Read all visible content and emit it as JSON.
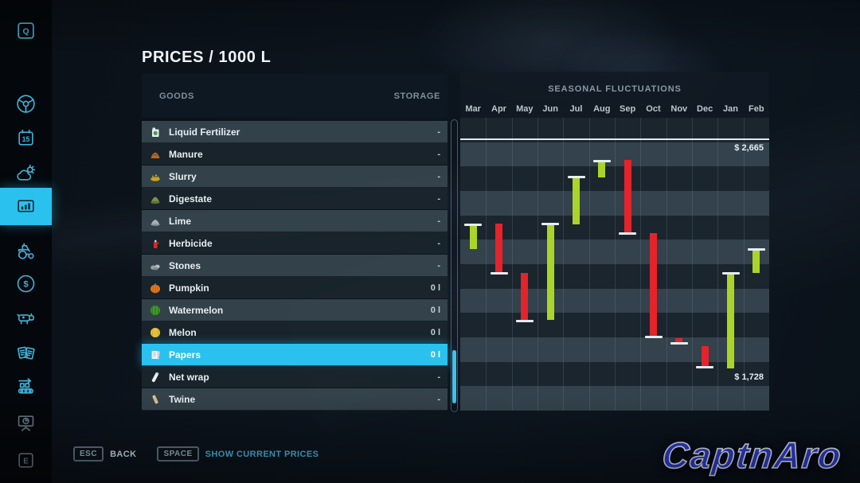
{
  "header": {
    "title": "PRICES / 1000 L"
  },
  "sidebar": {
    "items": [
      {
        "id": "quests",
        "icon": "q-key-icon",
        "label": "Q",
        "selected": false
      },
      {
        "id": "vehicles",
        "icon": "steering-wheel-icon",
        "label": "",
        "selected": false
      },
      {
        "id": "calendar",
        "icon": "calendar-icon",
        "label": "15",
        "selected": false
      },
      {
        "id": "weather",
        "icon": "weather-icon",
        "label": "",
        "selected": false
      },
      {
        "id": "prices",
        "icon": "chart-icon",
        "label": "",
        "selected": true
      },
      {
        "id": "garage",
        "icon": "tractor-icon",
        "label": "",
        "selected": false
      },
      {
        "id": "finances",
        "icon": "dollar-icon",
        "label": "$",
        "selected": false
      },
      {
        "id": "animals",
        "icon": "cow-icon",
        "label": "",
        "selected": false
      },
      {
        "id": "contracts",
        "icon": "contracts-icon",
        "label": "",
        "selected": false
      },
      {
        "id": "production",
        "icon": "production-icon",
        "label": "",
        "selected": false
      },
      {
        "id": "statistics",
        "icon": "screen-icon",
        "label": "",
        "selected": false
      },
      {
        "id": "help",
        "icon": "e-key-icon",
        "label": "E",
        "selected": false
      }
    ]
  },
  "goods_panel": {
    "columns": {
      "goods": "GOODS",
      "storage": "STORAGE"
    },
    "rows": [
      {
        "name": "Liquid Fertilizer",
        "icon": "liquid-fertilizer-icon",
        "storage": "-",
        "selected": false
      },
      {
        "name": "Manure",
        "icon": "manure-icon",
        "storage": "-",
        "selected": false
      },
      {
        "name": "Slurry",
        "icon": "slurry-icon",
        "storage": "-",
        "selected": false
      },
      {
        "name": "Digestate",
        "icon": "digestate-icon",
        "storage": "-",
        "selected": false
      },
      {
        "name": "Lime",
        "icon": "lime-icon",
        "storage": "-",
        "selected": false
      },
      {
        "name": "Herbicide",
        "icon": "herbicide-icon",
        "storage": "-",
        "selected": false
      },
      {
        "name": "Stones",
        "icon": "stones-icon",
        "storage": "-",
        "selected": false
      },
      {
        "name": "Pumpkin",
        "icon": "pumpkin-icon",
        "storage": "0 l",
        "selected": false
      },
      {
        "name": "Watermelon",
        "icon": "watermelon-icon",
        "storage": "0 l",
        "selected": false
      },
      {
        "name": "Melon",
        "icon": "melon-icon",
        "storage": "0 l",
        "selected": false
      },
      {
        "name": "Papers",
        "icon": "papers-icon",
        "storage": "0 l",
        "selected": true
      },
      {
        "name": "Net wrap",
        "icon": "net-wrap-icon",
        "storage": "-",
        "selected": false
      },
      {
        "name": "Twine",
        "icon": "twine-icon",
        "storage": "-",
        "selected": false
      }
    ]
  },
  "chart_data": {
    "type": "candlestick",
    "title": "SEASONAL FLUCTUATIONS",
    "months": [
      "Mar",
      "Apr",
      "May",
      "Jun",
      "Jul",
      "Aug",
      "Sep",
      "Oct",
      "Nov",
      "Dec",
      "Jan",
      "Feb"
    ],
    "axis": {
      "reference_line_price": 2665,
      "min_price": 1728,
      "max_label": "$ 2,665",
      "min_label": "$ 1,728"
    },
    "bars": [
      {
        "month": "Mar",
        "color": "green",
        "high": 2314,
        "low": 2216,
        "tick": "high"
      },
      {
        "month": "Apr",
        "color": "red",
        "high": 2320,
        "low": 2118,
        "tick": "low"
      },
      {
        "month": "May",
        "color": "red",
        "high": 2118,
        "low": 1923,
        "tick": "low"
      },
      {
        "month": "Jun",
        "color": "green",
        "high": 2317,
        "low": 1926,
        "tick": "high"
      },
      {
        "month": "Jul",
        "color": "green",
        "high": 2512,
        "low": 2317,
        "tick": "high"
      },
      {
        "month": "Aug",
        "color": "green",
        "high": 2577,
        "low": 2509,
        "tick": "high"
      },
      {
        "month": "Sep",
        "color": "red",
        "high": 2580,
        "low": 2281,
        "tick": "low"
      },
      {
        "month": "Oct",
        "color": "red",
        "high": 2281,
        "low": 1855,
        "tick": "low"
      },
      {
        "month": "Nov",
        "color": "red",
        "high": 1852,
        "low": 1829,
        "tick": "low"
      },
      {
        "month": "Dec",
        "color": "red",
        "high": 1819,
        "low": 1734,
        "tick": "low"
      },
      {
        "month": "Jan",
        "color": "green",
        "high": 2118,
        "low": 1728,
        "tick": "high"
      },
      {
        "month": "Feb",
        "color": "green",
        "high": 2216,
        "low": 2118,
        "tick": "high"
      }
    ],
    "legend_colors": {
      "rising": "#aad429",
      "falling": "#e4232a"
    }
  },
  "footer": {
    "esc_key": "ESC",
    "back_label": "BACK",
    "space_key": "SPACE",
    "space_label": "SHOW CURRENT PRICES"
  },
  "watermark": "CaptnAro",
  "colors": {
    "accent": "#2ac1ef",
    "green_bar": "#aad429",
    "red_bar": "#e4232a",
    "selected_row": "#2ac1ef"
  }
}
